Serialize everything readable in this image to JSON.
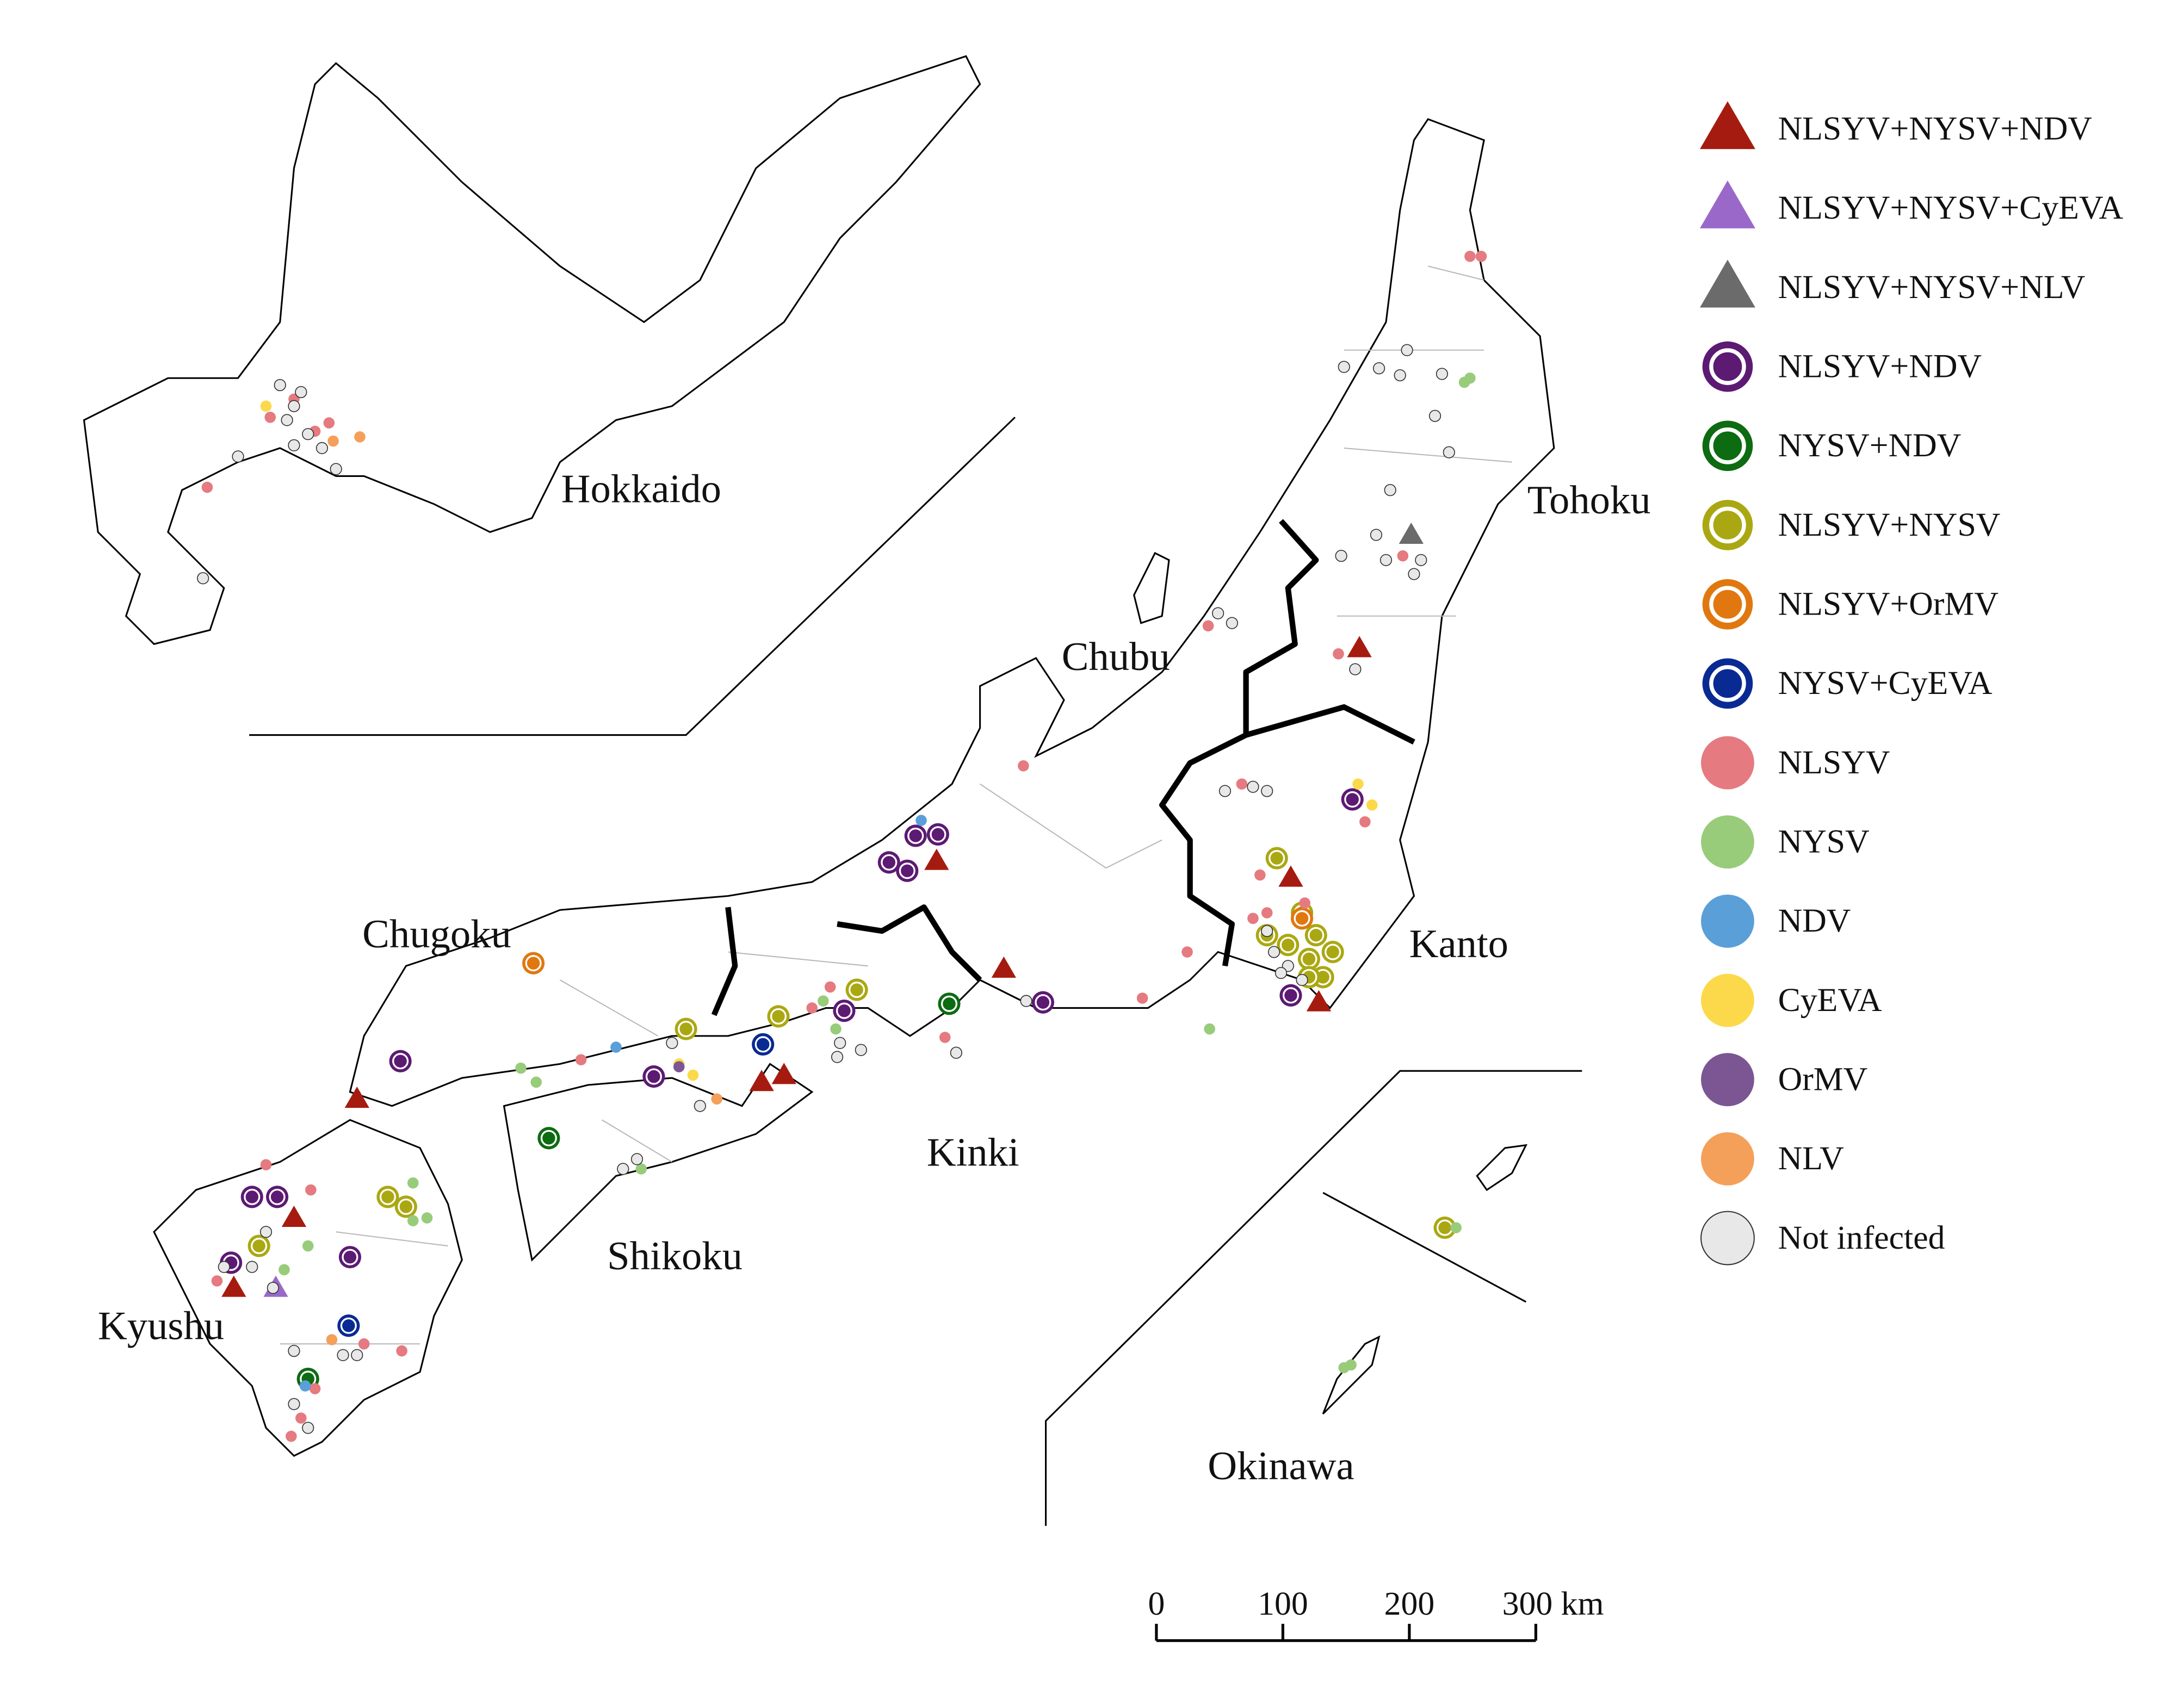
{
  "map": {
    "regions": [
      "Hokkaido",
      "Tohoku",
      "Chubu",
      "Kanto",
      "Chugoku",
      "Kinki",
      "Shikoku",
      "Kyushu",
      "Okinawa"
    ],
    "legend": [
      {
        "label": "NLSYV+NYSV+NDV",
        "shape": "triangle",
        "color": "#a61b0f"
      },
      {
        "label": "NLSYV+NYSV+CyEVA",
        "shape": "triangle",
        "color": "#9a68c9"
      },
      {
        "label": "NLSYV+NYSV+NLV",
        "shape": "triangle",
        "color": "#6b6b6b"
      },
      {
        "label": "NLSYV+NDV",
        "shape": "ring",
        "color": "#5c1a73"
      },
      {
        "label": "NYSV+NDV",
        "shape": "ring",
        "color": "#0d6b12"
      },
      {
        "label": "NLSYV+NYSV",
        "shape": "ring",
        "color": "#aaa812"
      },
      {
        "label": "NLSYV+OrMV",
        "shape": "ring",
        "color": "#e0780f"
      },
      {
        "label": "NYSV+CyEVA",
        "shape": "ring",
        "color": "#0a2a93"
      },
      {
        "label": "NLSYV",
        "shape": "dot",
        "color": "#e57a80"
      },
      {
        "label": "NYSV",
        "shape": "dot",
        "color": "#98cc7a"
      },
      {
        "label": "NDV",
        "shape": "dot",
        "color": "#5a9fd8"
      },
      {
        "label": "CyEVA",
        "shape": "dot",
        "color": "#fcd94a"
      },
      {
        "label": "OrMV",
        "shape": "dot",
        "color": "#7b5693"
      },
      {
        "label": "NLV",
        "shape": "dot",
        "color": "#f4a05a"
      },
      {
        "label": "Not infected",
        "shape": "circle",
        "color": "#e8e8e8"
      }
    ],
    "scale_bar": {
      "ticks": [
        0,
        100,
        200,
        {
          "value": 300,
          "label": "300 km"
        }
      ],
      "lim": [
        0,
        300
      ]
    }
  }
}
